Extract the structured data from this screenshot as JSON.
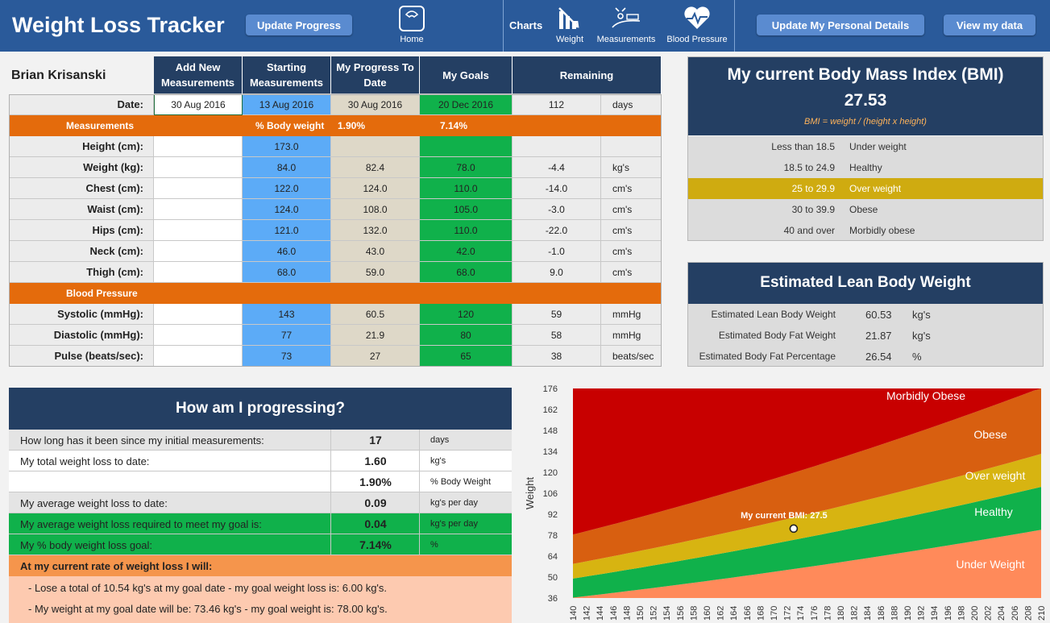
{
  "header": {
    "title": "Weight Loss Tracker",
    "update_progress": "Update Progress",
    "home": "Home",
    "charts": "Charts",
    "weight": "Weight",
    "measurements": "Measurements",
    "blood_pressure": "Blood Pressure",
    "update_details": "Update My Personal Details",
    "view_data": "View my data"
  },
  "user": {
    "name": "Brian Krisanski"
  },
  "table": {
    "headers": [
      "Add New Measurements",
      "Starting Measurements",
      "My Progress To Date",
      "My Goals",
      "Remaining"
    ],
    "date_label": "Date:",
    "date": {
      "new": "30 Aug 2016",
      "start": "13 Aug 2016",
      "progress": "30 Aug 2016",
      "goal": "20 Dec 2016",
      "remaining": "112",
      "unit": "days"
    },
    "measurements_band": {
      "label": "Measurements",
      "pct_label": "% Body weight",
      "progress_pct": "1.90%",
      "goal_pct": "7.14%"
    },
    "rows": [
      {
        "label": "Height (cm):",
        "start": "173.0",
        "progress": "",
        "goal": "",
        "remaining": "",
        "unit": ""
      },
      {
        "label": "Weight (kg):",
        "start": "84.0",
        "progress": "82.4",
        "goal": "78.0",
        "remaining": "-4.4",
        "unit": "kg's"
      },
      {
        "label": "Chest (cm):",
        "start": "122.0",
        "progress": "124.0",
        "goal": "110.0",
        "remaining": "-14.0",
        "unit": "cm's"
      },
      {
        "label": "Waist (cm):",
        "start": "124.0",
        "progress": "108.0",
        "goal": "105.0",
        "remaining": "-3.0",
        "unit": "cm's"
      },
      {
        "label": "Hips (cm):",
        "start": "121.0",
        "progress": "132.0",
        "goal": "110.0",
        "remaining": "-22.0",
        "unit": "cm's"
      },
      {
        "label": "Neck (cm):",
        "start": "46.0",
        "progress": "43.0",
        "goal": "42.0",
        "remaining": "-1.0",
        "unit": "cm's"
      },
      {
        "label": "Thigh (cm):",
        "start": "68.0",
        "progress": "59.0",
        "goal": "68.0",
        "remaining": "9.0",
        "unit": "cm's"
      }
    ],
    "bp_band": "Blood Pressure",
    "bp_rows": [
      {
        "label": "Systolic (mmHg):",
        "start": "143",
        "progress": "60.5",
        "goal": "120",
        "remaining": "59",
        "unit": "mmHg"
      },
      {
        "label": "Diastolic (mmHg):",
        "start": "77",
        "progress": "21.9",
        "goal": "80",
        "remaining": "58",
        "unit": "mmHg"
      },
      {
        "label": "Pulse (beats/sec):",
        "start": "73",
        "progress": "27",
        "goal": "65",
        "remaining": "38",
        "unit": "beats/sec"
      }
    ]
  },
  "bmi": {
    "title": "My current Body Mass Index (BMI)",
    "value": "27.53",
    "formula": "BMI = weight / (height x height)",
    "rows": [
      {
        "range": "Less than 18.5",
        "cat": "Under weight"
      },
      {
        "range": "18.5 to 24.9",
        "cat": "Healthy"
      },
      {
        "range": "25 to 29.9",
        "cat": "Over weight"
      },
      {
        "range": "30 to 39.9",
        "cat": "Obese"
      },
      {
        "range": "40 and over",
        "cat": "Morbidly obese"
      }
    ],
    "highlight_color": "#cfab10"
  },
  "lean": {
    "title": "Estimated Lean Body Weight",
    "rows": [
      {
        "label": "Estimated Lean Body Weight",
        "value": "60.53",
        "unit": "kg's"
      },
      {
        "label": "Estimated Body Fat Weight",
        "value": "21.87",
        "unit": "kg's"
      },
      {
        "label": "Estimated Body Fat Percentage",
        "value": "26.54",
        "unit": "%"
      }
    ]
  },
  "progress": {
    "title": "How am I progressing?",
    "rows": [
      {
        "label": "How long has it been since my initial measurements:",
        "value": "17",
        "unit": "days"
      },
      {
        "label": "My total weight loss to date:",
        "value": "1.60",
        "unit": "kg's"
      },
      {
        "label": "",
        "value": "1.90%",
        "unit": "% Body Weight"
      },
      {
        "label": "My average weight loss to date:",
        "value": "0.09",
        "unit": "kg's per day"
      },
      {
        "label": "My average weight loss required to meet my goal is:",
        "value": "0.04",
        "unit": "kg's per day"
      },
      {
        "label": "My % body weight loss goal:",
        "value": "7.14%",
        "unit": "%"
      }
    ],
    "rate_header": "At my current rate of weight loss I will:",
    "line1": "- Lose a total of 10.54 kg's at my goal date - my goal weight loss is: 6.00 kg's.",
    "line2": "- My weight at my goal date will be: 73.46 kg's - my goal weight is: 78.00 kg's."
  },
  "chart_data": {
    "type": "area",
    "ylabel": "Weight",
    "x": [
      140,
      142,
      144,
      146,
      148,
      150,
      152,
      154,
      156,
      158,
      160,
      162,
      164,
      166,
      168,
      170,
      172,
      174,
      176,
      178,
      180,
      182,
      184,
      186,
      188,
      190,
      192,
      194,
      196,
      198,
      200,
      202,
      204,
      206,
      208,
      210
    ],
    "yticks": [
      36,
      50,
      64,
      78,
      92,
      106,
      120,
      134,
      148,
      162,
      176
    ],
    "xlim": [
      140,
      210
    ],
    "ylim": [
      36,
      176
    ],
    "bmi_bounds": [
      18.5,
      25,
      30,
      40
    ],
    "band_colors": [
      "#ff8a5a",
      "#10b14b",
      "#d7b411",
      "#d85f10",
      "#c80000"
    ],
    "band_labels": [
      "Under Weight",
      "Healthy",
      "Over weight",
      "Obese",
      "Morbidly Obese"
    ],
    "current": {
      "height": 173,
      "weight": 82.4,
      "label": "My current BMI: 27.5"
    }
  }
}
